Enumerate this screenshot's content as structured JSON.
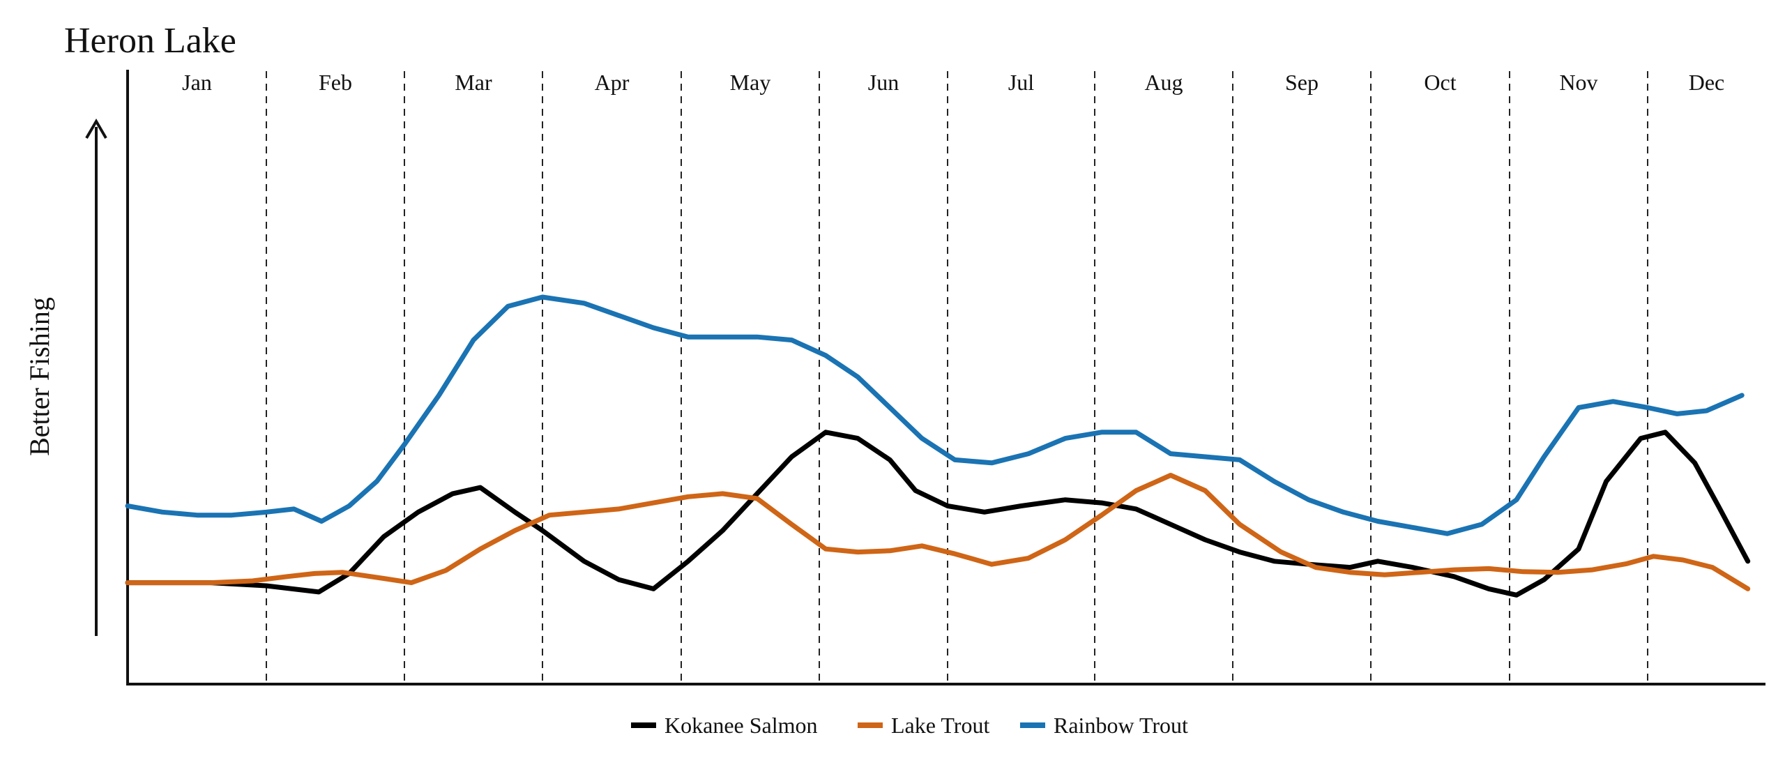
{
  "chart_data": {
    "type": "line",
    "title": "Heron Lake",
    "ylabel": "Better Fishing",
    "xlabel": "",
    "months": [
      "Jan",
      "Feb",
      "Mar",
      "Apr",
      "May",
      "Jun",
      "Jul",
      "Aug",
      "Sep",
      "Oct",
      "Nov",
      "Dec"
    ],
    "x_range": [
      0,
      12
    ],
    "y_range": [
      0,
      100
    ],
    "grid": false,
    "month_dividers": "dashed vertical lines",
    "legend_placement": "bottom-center",
    "series": [
      {
        "name": "Kokanee Salmon",
        "color": "#000000",
        "x": [
          0,
          0.3,
          0.6,
          1.0,
          1.38,
          1.6,
          1.85,
          2.1,
          2.35,
          2.55,
          2.8,
          3.0,
          3.3,
          3.55,
          3.8,
          4.05,
          4.3,
          4.55,
          4.8,
          5.05,
          5.3,
          5.55,
          5.75,
          6.0,
          6.25,
          6.5,
          6.8,
          7.05,
          7.3,
          7.55,
          7.8,
          8.05,
          8.3,
          8.55,
          8.85,
          9.05,
          9.3,
          9.6,
          9.85,
          10.05,
          10.25,
          10.5,
          10.7,
          10.95,
          11.15,
          11.4,
          11.6,
          11.85
        ],
        "y": [
          16.5,
          16.5,
          16.5,
          16,
          15,
          18,
          24,
          28,
          31,
          32,
          28,
          25,
          20,
          17,
          15.5,
          20,
          25,
          31,
          37,
          41,
          40,
          36.5,
          31.5,
          29,
          28,
          29,
          30,
          29.5,
          28.5,
          26,
          23.5,
          21.5,
          20,
          19.5,
          19,
          20,
          19,
          17.5,
          15.5,
          14.5,
          17,
          22,
          33,
          40,
          41,
          36,
          29,
          20
        ]
      },
      {
        "name": "Lake Trout",
        "color": "#cf6516",
        "x": [
          0,
          0.3,
          0.6,
          0.9,
          1.15,
          1.35,
          1.55,
          1.85,
          2.05,
          2.3,
          2.55,
          2.8,
          3.05,
          3.3,
          3.55,
          3.8,
          4.05,
          4.3,
          4.55,
          4.8,
          5.05,
          5.3,
          5.55,
          5.8,
          6.05,
          6.3,
          6.55,
          6.8,
          7.05,
          7.3,
          7.55,
          7.8,
          8.05,
          8.35,
          8.6,
          8.85,
          9.1,
          9.35,
          9.6,
          9.85,
          10.1,
          10.35,
          10.6,
          10.85,
          11.05,
          11.3,
          11.55,
          11.85
        ],
        "y": [
          16.5,
          16.5,
          16.5,
          16.8,
          17.5,
          18,
          18.2,
          17.2,
          16.5,
          18.5,
          22,
          25,
          27.5,
          28,
          28.5,
          29.5,
          30.5,
          31,
          30.2,
          26,
          22,
          21.5,
          21.7,
          22.5,
          21.2,
          19.5,
          20.5,
          23.5,
          27.5,
          31.5,
          34,
          31.5,
          26,
          21.5,
          19,
          18.2,
          17.8,
          18.2,
          18.6,
          18.8,
          18.3,
          18.2,
          18.6,
          19.6,
          20.8,
          20.2,
          19,
          15.5
        ]
      },
      {
        "name": "Rainbow Trout",
        "color": "#1a73b3",
        "x": [
          0,
          0.25,
          0.5,
          0.75,
          1.0,
          1.2,
          1.4,
          1.6,
          1.8,
          2.0,
          2.25,
          2.5,
          2.75,
          3.0,
          3.3,
          3.55,
          3.8,
          4.05,
          4.3,
          4.55,
          4.8,
          5.05,
          5.3,
          5.55,
          5.8,
          6.05,
          6.3,
          6.55,
          6.8,
          7.05,
          7.3,
          7.55,
          7.8,
          8.05,
          8.3,
          8.55,
          8.8,
          9.05,
          9.3,
          9.55,
          9.8,
          10.05,
          10.25,
          10.5,
          10.75,
          11.0,
          11.25,
          11.5,
          11.8
        ],
        "y": [
          29,
          28,
          27.5,
          27.5,
          28,
          28.5,
          26.5,
          29,
          33,
          39,
          47,
          56,
          61.5,
          63,
          62,
          60,
          58,
          56.5,
          56.5,
          56.5,
          56,
          53.5,
          50,
          45,
          40,
          36.5,
          36,
          37.5,
          40,
          41,
          41,
          37.5,
          37,
          36.5,
          33,
          30,
          28,
          26.5,
          25.5,
          24.5,
          26,
          30,
          37,
          45,
          46,
          45,
          44,
          44.5,
          47
        ]
      }
    ]
  }
}
